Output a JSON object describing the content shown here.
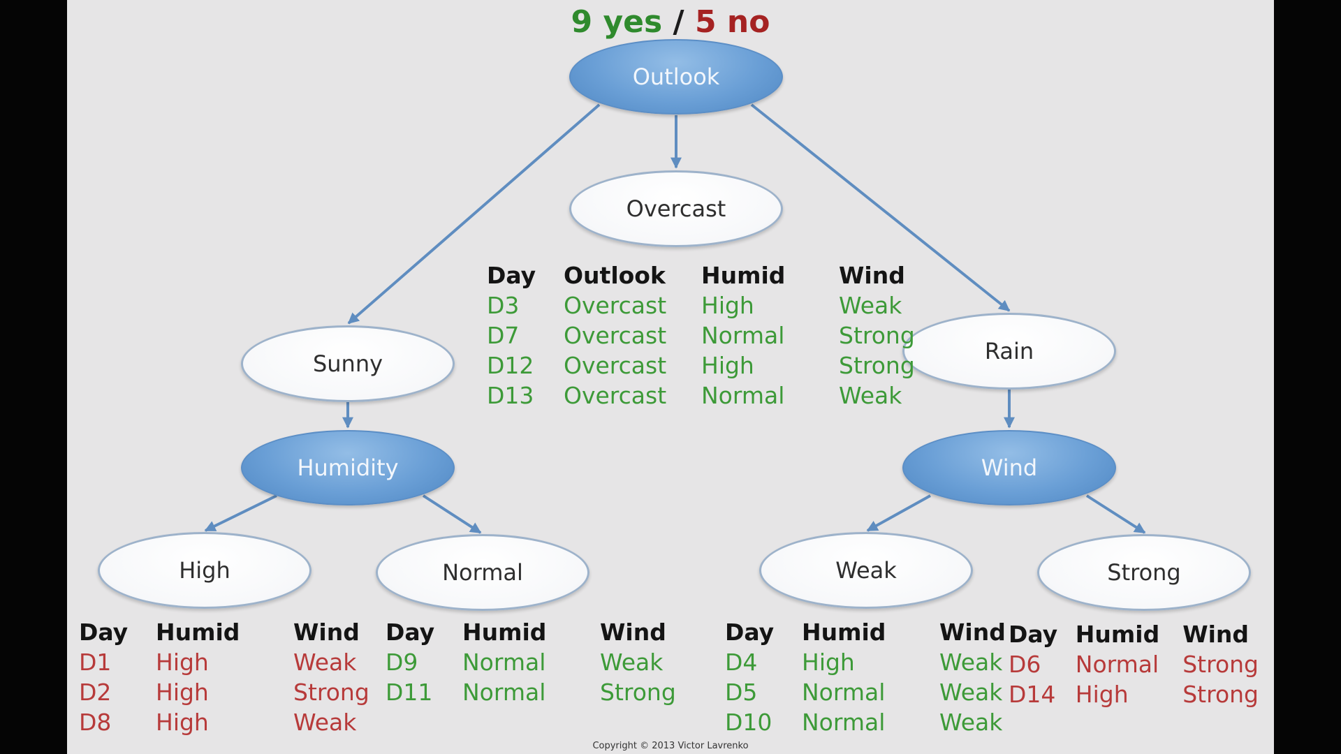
{
  "title": {
    "yes": "9 yes",
    "sep": "/",
    "no": "5 no"
  },
  "nodes": {
    "outlook": "Outlook",
    "overcast": "Overcast",
    "sunny": "Sunny",
    "rain": "Rain",
    "humidity": "Humidity",
    "wind": "Wind",
    "high": "High",
    "normal": "Normal",
    "weak": "Weak",
    "strong": "Strong"
  },
  "tables": {
    "overcast": {
      "headers": [
        "Day",
        "Outlook",
        "Humid",
        "Wind"
      ],
      "rows": [
        {
          "cls": "pos",
          "cells": [
            "D3",
            "Overcast",
            "High",
            "Weak"
          ]
        },
        {
          "cls": "pos",
          "cells": [
            "D7",
            "Overcast",
            "Normal",
            "Strong"
          ]
        },
        {
          "cls": "pos",
          "cells": [
            "D12",
            "Overcast",
            "High",
            "Strong"
          ]
        },
        {
          "cls": "pos",
          "cells": [
            "D13",
            "Overcast",
            "Normal",
            "Weak"
          ]
        }
      ]
    },
    "high": {
      "headers": [
        "Day",
        "Humid",
        "Wind"
      ],
      "rows": [
        {
          "cls": "neg",
          "cells": [
            "D1",
            "High",
            "Weak"
          ]
        },
        {
          "cls": "neg",
          "cells": [
            "D2",
            "High",
            "Strong"
          ]
        },
        {
          "cls": "neg",
          "cells": [
            "D8",
            "High",
            "Weak"
          ]
        }
      ]
    },
    "normal": {
      "headers": [
        "Day",
        "Humid",
        "Wind"
      ],
      "rows": [
        {
          "cls": "pos",
          "cells": [
            "D9",
            "Normal",
            "Weak"
          ]
        },
        {
          "cls": "pos",
          "cells": [
            "D11",
            "Normal",
            "Strong"
          ]
        }
      ]
    },
    "weak": {
      "headers": [
        "Day",
        "Humid",
        "Wind"
      ],
      "rows": [
        {
          "cls": "pos",
          "cells": [
            "D4",
            "High",
            "Weak"
          ]
        },
        {
          "cls": "pos",
          "cells": [
            "D5",
            "Normal",
            "Weak"
          ]
        },
        {
          "cls": "pos",
          "cells": [
            "D10",
            "Normal",
            "Weak"
          ]
        }
      ]
    },
    "strong": {
      "headers": [
        "Day",
        "Humid",
        "Wind"
      ],
      "rows": [
        {
          "cls": "neg",
          "cells": [
            "D6",
            "Normal",
            "Strong"
          ]
        },
        {
          "cls": "neg",
          "cells": [
            "D14",
            "High",
            "Strong"
          ]
        }
      ]
    }
  },
  "copyright": "Copyright © 2013 Victor Lavrenko",
  "colors": {
    "positive": "#3d9a38",
    "negative": "#b73a3a",
    "edge": "#5f8dc0",
    "attribute_node": "#6a9fd6"
  }
}
